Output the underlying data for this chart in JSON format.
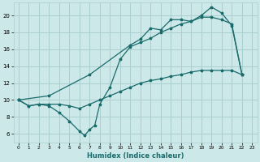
{
  "title": "",
  "xlabel": "Humidex (Indice chaleur)",
  "ylabel": "",
  "bg_color": "#cce8e8",
  "grid_color": "#aacfcf",
  "line_color": "#1a6b6b",
  "xlim": [
    -0.5,
    23.5
  ],
  "ylim": [
    5,
    21.5
  ],
  "xticks": [
    0,
    1,
    2,
    3,
    4,
    5,
    6,
    7,
    8,
    9,
    10,
    11,
    12,
    13,
    14,
    15,
    16,
    17,
    18,
    19,
    20,
    21,
    22,
    23
  ],
  "yticks": [
    6,
    8,
    10,
    12,
    14,
    16,
    18,
    20
  ],
  "line1_x": [
    0,
    1,
    2,
    3,
    4,
    5,
    6,
    7,
    8,
    9,
    10,
    11,
    12,
    13,
    14,
    15,
    16,
    17,
    18,
    19,
    20,
    21,
    22
  ],
  "line1_y": [
    10,
    9.3,
    9.5,
    9.5,
    9.5,
    9.3,
    9.0,
    9.5,
    10.0,
    10.5,
    11.0,
    11.5,
    12.0,
    12.3,
    12.5,
    12.8,
    13.0,
    13.3,
    13.5,
    13.5,
    13.5,
    13.5,
    13.0
  ],
  "line2_x": [
    0,
    1,
    2,
    3,
    4,
    5,
    6,
    6.5,
    7,
    7.5,
    8,
    9,
    10,
    11,
    12,
    13,
    14,
    15,
    16,
    17,
    18,
    19,
    20,
    21,
    22
  ],
  "line2_y": [
    10,
    9.3,
    9.5,
    9.3,
    8.5,
    7.5,
    6.3,
    5.8,
    6.5,
    7.0,
    9.5,
    11.5,
    14.8,
    16.3,
    16.8,
    17.3,
    18.0,
    18.5,
    19.0,
    19.3,
    19.8,
    19.8,
    19.5,
    19.0,
    13.0
  ],
  "line3_x": [
    0,
    3,
    7,
    11,
    12,
    13,
    14,
    15,
    16,
    17,
    18,
    19,
    20,
    21,
    22
  ],
  "line3_y": [
    10,
    10.5,
    13.0,
    16.5,
    17.2,
    18.5,
    18.3,
    19.5,
    19.5,
    19.3,
    20.0,
    21.0,
    20.3,
    18.8,
    13.0
  ]
}
